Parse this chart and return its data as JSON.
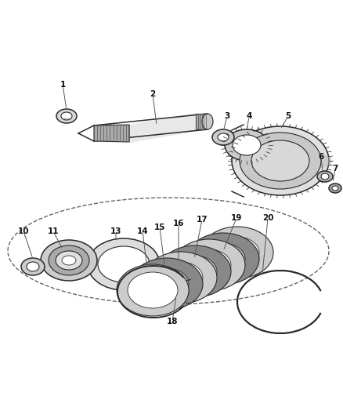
{
  "bg_color": "#ffffff",
  "lc": "#2a2a2a",
  "gc": "#888888",
  "fig_width": 4.38,
  "fig_height": 5.33,
  "dpi": 100
}
